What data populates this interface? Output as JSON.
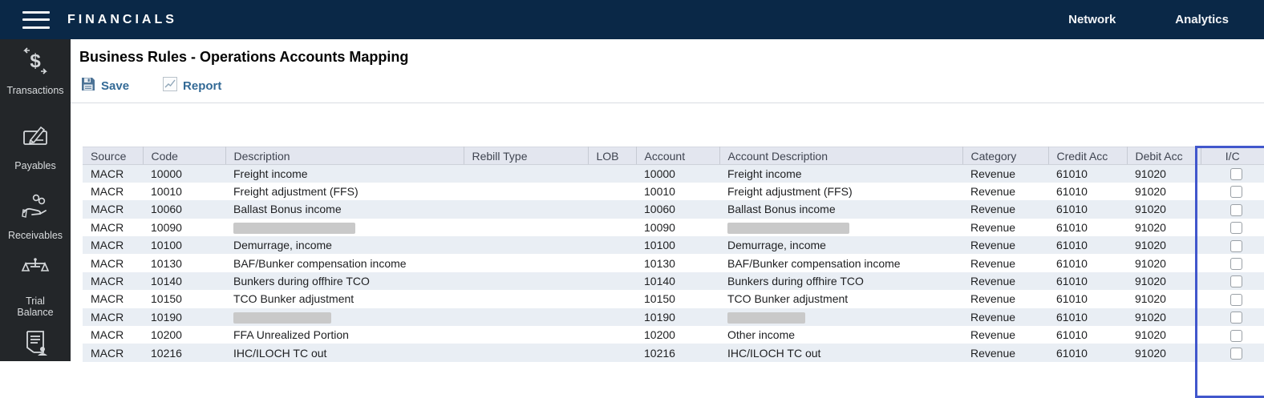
{
  "topbar": {
    "title": "FINANCIALS",
    "links": [
      {
        "label": "Network"
      },
      {
        "label": "Analytics"
      }
    ]
  },
  "sidebar": {
    "items": [
      {
        "label": "Transactions",
        "icon": "dollar-transfer-icon"
      },
      {
        "label": "Payables",
        "icon": "check-pen-icon"
      },
      {
        "label": "Receivables",
        "icon": "hand-coins-icon"
      },
      {
        "label": "Trial Balance",
        "icon": "scales-icon"
      },
      {
        "label": "",
        "icon": "document-person-icon"
      }
    ]
  },
  "page": {
    "title": "Business Rules - Operations Accounts Mapping",
    "toolbar": {
      "save_label": "Save",
      "report_label": "Report"
    }
  },
  "table": {
    "columns": [
      "Source",
      "Code",
      "Description",
      "Rebill Type",
      "LOB",
      "Account",
      "Account Description",
      "Category",
      "Credit Acc",
      "Debit Acc",
      "I/C"
    ],
    "highlighted_column": "Debit Acc",
    "rows": [
      {
        "source": "MACR",
        "code": "10000",
        "description": "Freight income",
        "rebill_type": "",
        "lob": "",
        "account": "10000",
        "account_description": "Freight income",
        "category": "Revenue",
        "credit_acc": "61010",
        "debit_acc": "91020",
        "ic_checked": false
      },
      {
        "source": "MACR",
        "code": "10010",
        "description": "Freight adjustment (FFS)",
        "rebill_type": "",
        "lob": "",
        "account": "10010",
        "account_description": "Freight adjustment (FFS)",
        "category": "Revenue",
        "credit_acc": "61010",
        "debit_acc": "91020",
        "ic_checked": false
      },
      {
        "source": "MACR",
        "code": "10060",
        "description": "Ballast Bonus income",
        "rebill_type": "",
        "lob": "",
        "account": "10060",
        "account_description": "Ballast Bonus income",
        "category": "Revenue",
        "credit_acc": "61010",
        "debit_acc": "91020",
        "ic_checked": false
      },
      {
        "source": "MACR",
        "code": "10090",
        "description": "",
        "description_redacted": true,
        "description_redaction_width": 152,
        "rebill_type": "",
        "lob": "",
        "account": "10090",
        "account_description": "",
        "account_description_redacted": true,
        "account_description_redaction_width": 152,
        "category": "Revenue",
        "credit_acc": "61010",
        "debit_acc": "91020",
        "ic_checked": false
      },
      {
        "source": "MACR",
        "code": "10100",
        "description": "Demurrage, income",
        "rebill_type": "",
        "lob": "",
        "account": "10100",
        "account_description": "Demurrage, income",
        "category": "Revenue",
        "credit_acc": "61010",
        "debit_acc": "91020",
        "ic_checked": false
      },
      {
        "source": "MACR",
        "code": "10130",
        "description": "BAF/Bunker compensation income",
        "rebill_type": "",
        "lob": "",
        "account": "10130",
        "account_description": "BAF/Bunker compensation income",
        "category": "Revenue",
        "credit_acc": "61010",
        "debit_acc": "91020",
        "ic_checked": false
      },
      {
        "source": "MACR",
        "code": "10140",
        "description": "Bunkers during offhire TCO",
        "rebill_type": "",
        "lob": "",
        "account": "10140",
        "account_description": "Bunkers during offhire TCO",
        "category": "Revenue",
        "credit_acc": "61010",
        "debit_acc": "91020",
        "ic_checked": false
      },
      {
        "source": "MACR",
        "code": "10150",
        "description": "TCO Bunker adjustment",
        "rebill_type": "",
        "lob": "",
        "account": "10150",
        "account_description": "TCO Bunker adjustment",
        "category": "Revenue",
        "credit_acc": "61010",
        "debit_acc": "91020",
        "ic_checked": false
      },
      {
        "source": "MACR",
        "code": "10190",
        "description": "",
        "description_redacted": true,
        "description_redaction_width": 122,
        "rebill_type": "",
        "lob": "",
        "account": "10190",
        "account_description": "",
        "account_description_redacted": true,
        "account_description_redaction_width": 97,
        "category": "Revenue",
        "credit_acc": "61010",
        "debit_acc": "91020",
        "ic_checked": false
      },
      {
        "source": "MACR",
        "code": "10200",
        "description": "FFA Unrealized Portion",
        "rebill_type": "",
        "lob": "",
        "account": "10200",
        "account_description": "Other income",
        "category": "Revenue",
        "credit_acc": "61010",
        "debit_acc": "91020",
        "ic_checked": false
      },
      {
        "source": "MACR",
        "code": "10216",
        "description": "IHC/ILOCH TC out",
        "rebill_type": "",
        "lob": "",
        "account": "10216",
        "account_description": "IHC/ILOCH TC out",
        "category": "Revenue",
        "credit_acc": "61010",
        "debit_acc": "91020",
        "ic_checked": false
      }
    ]
  },
  "colors": {
    "topbar_bg": "#0a2847",
    "sidebar_bg": "#232629",
    "header_row_bg": "#e3e6ef",
    "odd_row_bg": "#e9eef4",
    "highlight_border": "#4157cc",
    "toolbar_link": "#336a96",
    "redaction_fill": "#c9c9c9"
  }
}
